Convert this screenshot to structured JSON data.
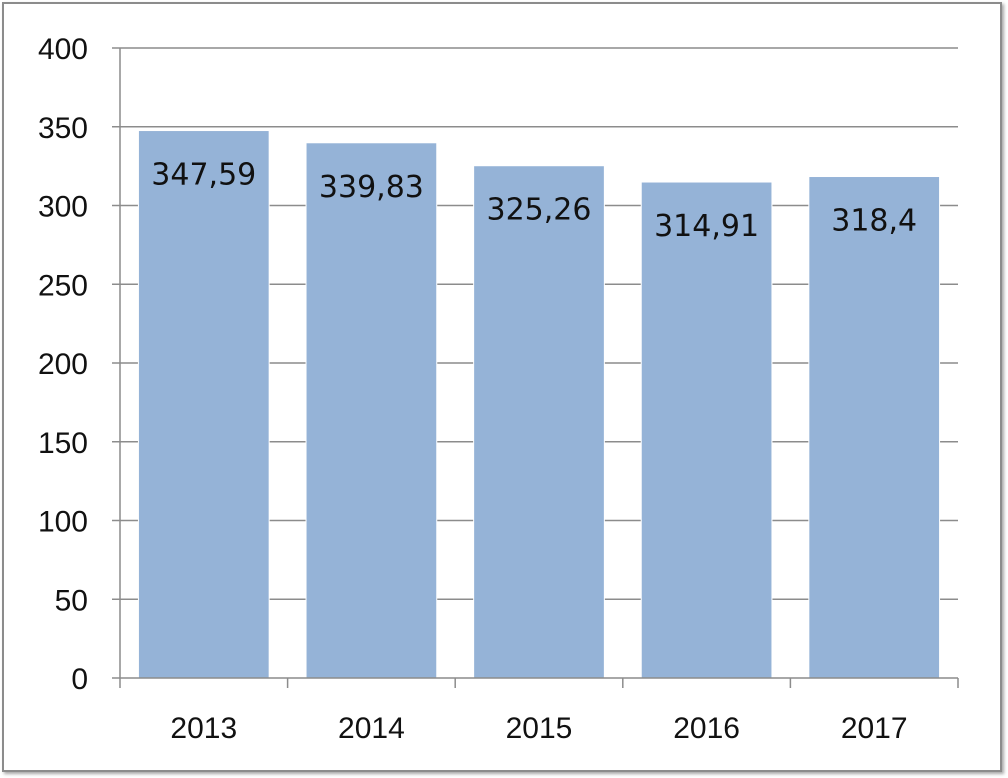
{
  "chart_data": {
    "type": "bar",
    "title": "",
    "xlabel": "",
    "ylabel": "",
    "categories": [
      "2013",
      "2014",
      "2015",
      "2016",
      "2017"
    ],
    "values": [
      347.59,
      339.83,
      325.26,
      314.91,
      318.4
    ],
    "data_labels": [
      "347,59",
      "339,83",
      "325,26",
      "314,91",
      "318,4"
    ],
    "ylim": [
      0,
      400
    ],
    "yticks": [
      0,
      50,
      100,
      150,
      200,
      250,
      300,
      350,
      400
    ],
    "grid": true,
    "legend": "none",
    "colors": {
      "bar": "#95B3D7",
      "bar_border": "#ffffff",
      "grid": "#8c8c8c",
      "axis": "#8c8c8c",
      "text": "#111111"
    }
  }
}
